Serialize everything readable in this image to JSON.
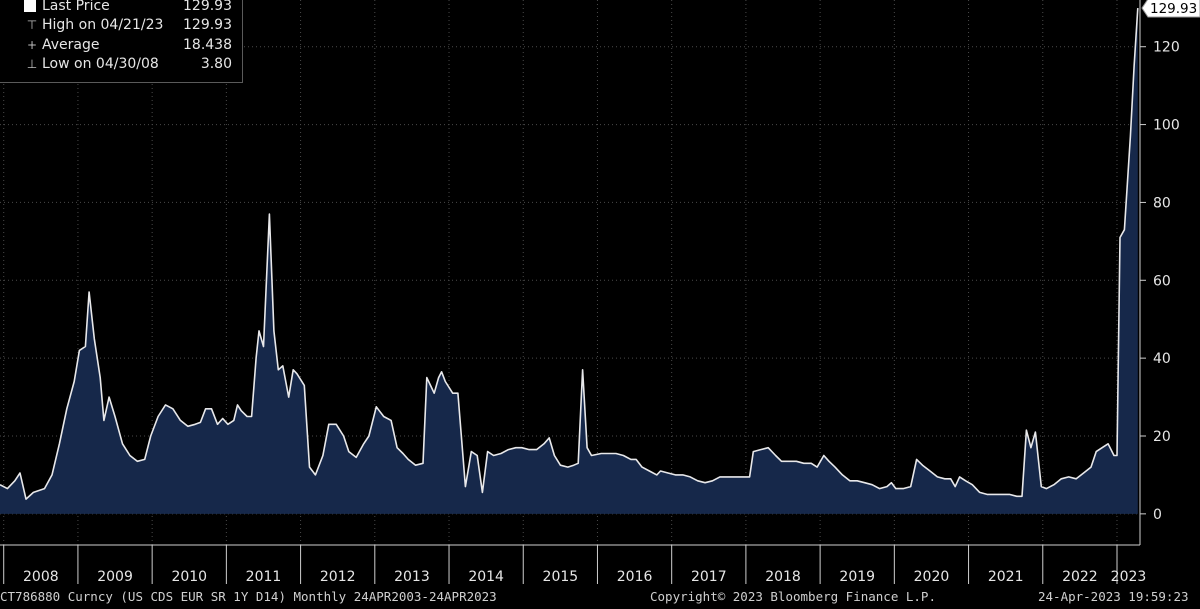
{
  "legend": {
    "last_price": {
      "label": "Last Price",
      "value": "129.93"
    },
    "high": {
      "label": "High on 04/21/23",
      "value": "129.93"
    },
    "average": {
      "label": "Average",
      "value": "18.438"
    },
    "low": {
      "label": "Low on 04/30/08",
      "value": "3.80"
    }
  },
  "last_value_tag": "129.93",
  "footer": {
    "ticker": "CT786880 Curncy (US CDS EUR SR 1Y D14) Monthly 24APR2003-24APR2023",
    "copyright": "Copyright© 2023 Bloomberg Finance L.P.",
    "timestamp": "24-Apr-2023 19:59:23"
  },
  "colors": {
    "background": "#000000",
    "line": "#e8e8ea",
    "fill": "#16284a",
    "grid": "#4a4a4a",
    "text": "#e6e6e6"
  },
  "chart_data": {
    "type": "area",
    "ylim": [
      -8,
      132
    ],
    "yticks": [
      0,
      20,
      40,
      60,
      80,
      100,
      120
    ],
    "year_labels": [
      "2008",
      "2009",
      "2010",
      "2011",
      "2012",
      "2013",
      "2014",
      "2015",
      "2016",
      "2017",
      "2018",
      "2019",
      "2020",
      "2021",
      "2022",
      "2023"
    ],
    "grid": true,
    "x_start": 2007.95,
    "x_end": 2023.31,
    "series": [
      {
        "values": [
          [
            2007.95,
            7.5
          ],
          [
            2008.05,
            6.5
          ],
          [
            2008.15,
            8.5
          ],
          [
            2008.22,
            10.5
          ],
          [
            2008.3,
            3.8
          ],
          [
            2008.4,
            5.5
          ],
          [
            2008.55,
            6.5
          ],
          [
            2008.65,
            10
          ],
          [
            2008.75,
            18
          ],
          [
            2008.85,
            27
          ],
          [
            2008.95,
            34
          ],
          [
            2009.02,
            42
          ],
          [
            2009.1,
            43
          ],
          [
            2009.15,
            57
          ],
          [
            2009.22,
            45
          ],
          [
            2009.3,
            35
          ],
          [
            2009.35,
            24
          ],
          [
            2009.42,
            30
          ],
          [
            2009.5,
            25
          ],
          [
            2009.6,
            18
          ],
          [
            2009.7,
            15
          ],
          [
            2009.8,
            13.5
          ],
          [
            2009.9,
            14
          ],
          [
            2009.98,
            20
          ],
          [
            2010.08,
            25
          ],
          [
            2010.18,
            28
          ],
          [
            2010.28,
            27
          ],
          [
            2010.38,
            24
          ],
          [
            2010.48,
            22.5
          ],
          [
            2010.58,
            23
          ],
          [
            2010.65,
            23.5
          ],
          [
            2010.72,
            27
          ],
          [
            2010.8,
            27
          ],
          [
            2010.88,
            23
          ],
          [
            2010.95,
            24.5
          ],
          [
            2011.02,
            23
          ],
          [
            2011.1,
            24
          ],
          [
            2011.15,
            28
          ],
          [
            2011.2,
            26.5
          ],
          [
            2011.28,
            25
          ],
          [
            2011.34,
            25
          ],
          [
            2011.4,
            40
          ],
          [
            2011.44,
            47
          ],
          [
            2011.5,
            43
          ],
          [
            2011.58,
            77
          ],
          [
            2011.64,
            47
          ],
          [
            2011.7,
            37
          ],
          [
            2011.76,
            38
          ],
          [
            2011.84,
            30
          ],
          [
            2011.9,
            37
          ],
          [
            2011.95,
            36
          ],
          [
            2012.05,
            33
          ],
          [
            2012.12,
            12
          ],
          [
            2012.2,
            10
          ],
          [
            2012.3,
            15
          ],
          [
            2012.38,
            23
          ],
          [
            2012.48,
            23
          ],
          [
            2012.58,
            20
          ],
          [
            2012.65,
            16
          ],
          [
            2012.75,
            14.5
          ],
          [
            2012.85,
            18
          ],
          [
            2012.92,
            20
          ],
          [
            2013.02,
            27.5
          ],
          [
            2013.12,
            25
          ],
          [
            2013.22,
            24
          ],
          [
            2013.3,
            17
          ],
          [
            2013.38,
            15.5
          ],
          [
            2013.45,
            14
          ],
          [
            2013.55,
            12.5
          ],
          [
            2013.65,
            13
          ],
          [
            2013.7,
            35
          ],
          [
            2013.75,
            33
          ],
          [
            2013.8,
            31
          ],
          [
            2013.86,
            35
          ],
          [
            2013.9,
            36.5
          ],
          [
            2013.95,
            34
          ],
          [
            2014.05,
            31
          ],
          [
            2014.12,
            31
          ],
          [
            2014.22,
            7
          ],
          [
            2014.3,
            16
          ],
          [
            2014.38,
            15
          ],
          [
            2014.45,
            5.5
          ],
          [
            2014.52,
            16
          ],
          [
            2014.6,
            15
          ],
          [
            2014.7,
            15.5
          ],
          [
            2014.8,
            16.5
          ],
          [
            2014.9,
            17
          ],
          [
            2014.98,
            17
          ],
          [
            2015.08,
            16.5
          ],
          [
            2015.18,
            16.5
          ],
          [
            2015.28,
            18
          ],
          [
            2015.35,
            19.5
          ],
          [
            2015.42,
            15
          ],
          [
            2015.5,
            12.5
          ],
          [
            2015.6,
            12
          ],
          [
            2015.68,
            12.5
          ],
          [
            2015.74,
            13
          ],
          [
            2015.8,
            37
          ],
          [
            2015.86,
            17
          ],
          [
            2015.92,
            15
          ],
          [
            2016.05,
            15.5
          ],
          [
            2016.15,
            15.5
          ],
          [
            2016.25,
            15.5
          ],
          [
            2016.35,
            15
          ],
          [
            2016.45,
            14
          ],
          [
            2016.52,
            14
          ],
          [
            2016.6,
            12
          ],
          [
            2016.7,
            11
          ],
          [
            2016.8,
            10
          ],
          [
            2016.85,
            11
          ],
          [
            2016.95,
            10.5
          ],
          [
            2017.05,
            10
          ],
          [
            2017.15,
            10
          ],
          [
            2017.25,
            9.5
          ],
          [
            2017.35,
            8.5
          ],
          [
            2017.45,
            8
          ],
          [
            2017.55,
            8.5
          ],
          [
            2017.65,
            9.5
          ],
          [
            2017.75,
            9.5
          ],
          [
            2017.85,
            9.5
          ],
          [
            2017.95,
            9.5
          ],
          [
            2018.05,
            9.5
          ],
          [
            2018.1,
            16
          ],
          [
            2018.2,
            16.5
          ],
          [
            2018.3,
            17
          ],
          [
            2018.4,
            15
          ],
          [
            2018.48,
            13.5
          ],
          [
            2018.58,
            13.5
          ],
          [
            2018.68,
            13.5
          ],
          [
            2018.78,
            13
          ],
          [
            2018.88,
            13
          ],
          [
            2018.96,
            12
          ],
          [
            2019.05,
            15
          ],
          [
            2019.12,
            13.5
          ],
          [
            2019.2,
            12
          ],
          [
            2019.3,
            10
          ],
          [
            2019.4,
            8.5
          ],
          [
            2019.5,
            8.5
          ],
          [
            2019.6,
            8
          ],
          [
            2019.7,
            7.5
          ],
          [
            2019.8,
            6.5
          ],
          [
            2019.9,
            7
          ],
          [
            2019.96,
            8
          ],
          [
            2020.02,
            6.5
          ],
          [
            2020.12,
            6.5
          ],
          [
            2020.22,
            7
          ],
          [
            2020.3,
            14
          ],
          [
            2020.38,
            12.5
          ],
          [
            2020.48,
            11
          ],
          [
            2020.58,
            9.5
          ],
          [
            2020.68,
            9
          ],
          [
            2020.76,
            9
          ],
          [
            2020.82,
            7
          ],
          [
            2020.88,
            9.5
          ],
          [
            2020.96,
            8.5
          ],
          [
            2021.05,
            7.5
          ],
          [
            2021.15,
            5.5
          ],
          [
            2021.25,
            5
          ],
          [
            2021.35,
            5
          ],
          [
            2021.45,
            5
          ],
          [
            2021.55,
            5
          ],
          [
            2021.65,
            4.5
          ],
          [
            2021.72,
            4.5
          ],
          [
            2021.78,
            21.5
          ],
          [
            2021.84,
            17
          ],
          [
            2021.9,
            21
          ],
          [
            2021.98,
            7
          ],
          [
            2022.05,
            6.5
          ],
          [
            2022.15,
            7.5
          ],
          [
            2022.25,
            9
          ],
          [
            2022.35,
            9.5
          ],
          [
            2022.45,
            9
          ],
          [
            2022.55,
            10.5
          ],
          [
            2022.65,
            12
          ],
          [
            2022.72,
            16
          ],
          [
            2022.8,
            17
          ],
          [
            2022.88,
            18
          ],
          [
            2022.96,
            15
          ],
          [
            2023.0,
            15
          ],
          [
            2023.04,
            71
          ],
          [
            2023.1,
            73
          ],
          [
            2023.18,
            97
          ],
          [
            2023.23,
            115
          ],
          [
            2023.28,
            129.93
          ]
        ]
      }
    ]
  }
}
